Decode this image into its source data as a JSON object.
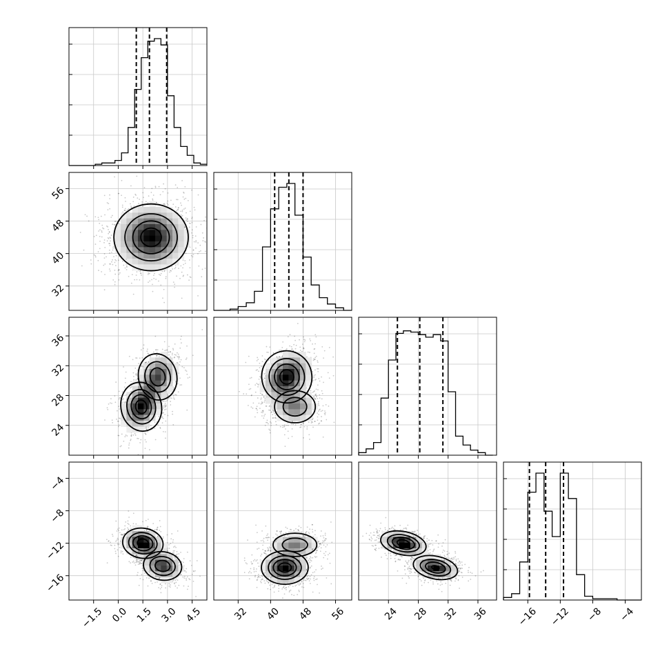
{
  "chart_data": {
    "type": "corner",
    "parameters": [
      {
        "ticks": [
          "−1.5",
          "0.0",
          "1.5",
          "3.0",
          "4.5"
        ],
        "tick_values": [
          -1.5,
          0,
          1.5,
          3,
          4.5
        ],
        "range": [
          -3.0,
          5.4
        ],
        "hist_edges": [
          -3.0,
          -2.6,
          -2.2,
          -1.8,
          -1.4,
          -1.0,
          -0.6,
          -0.2,
          0.2,
          0.6,
          1.0,
          1.4,
          1.8,
          2.2,
          2.6,
          3.0,
          3.4,
          3.8,
          4.2,
          4.6,
          5.0,
          5.4
        ],
        "hist_values": [
          0,
          0,
          0,
          0,
          0.01,
          0.02,
          0.02,
          0.04,
          0.1,
          0.3,
          0.6,
          0.85,
          0.98,
          1.0,
          0.95,
          0.55,
          0.3,
          0.15,
          0.08,
          0.02,
          0.01
        ],
        "quantiles": [
          1.1,
          1.9,
          2.95
        ]
      },
      {
        "ticks": [
          "32",
          "40",
          "48",
          "56"
        ],
        "tick_values": [
          32,
          40,
          48,
          56
        ],
        "range": [
          26,
          60
        ],
        "hist_edges": [
          26,
          28,
          30,
          32,
          34,
          36,
          38,
          40,
          42,
          44,
          46,
          48,
          50,
          52,
          54,
          56,
          58,
          60
        ],
        "hist_values": [
          0,
          0,
          0.01,
          0.03,
          0.06,
          0.15,
          0.5,
          0.8,
          0.97,
          1.0,
          0.75,
          0.42,
          0.2,
          0.1,
          0.05,
          0.02,
          0
        ],
        "quantiles": [
          41.0,
          44.5,
          48.0
        ]
      },
      {
        "ticks": [
          "24",
          "28",
          "32",
          "36"
        ],
        "tick_values": [
          24,
          28,
          32,
          36
        ],
        "range": [
          20,
          38.5
        ],
        "hist_edges": [
          20,
          21,
          22,
          23,
          24,
          25,
          26,
          27,
          28,
          29,
          30,
          31,
          32,
          33,
          34,
          35,
          36,
          37,
          38
        ],
        "hist_values": [
          0.02,
          0.05,
          0.1,
          0.45,
          0.75,
          0.96,
          0.98,
          0.97,
          0.95,
          0.93,
          0.95,
          0.9,
          0.5,
          0.15,
          0.08,
          0.04,
          0.02,
          0
        ],
        "quantiles": [
          25.2,
          28.2,
          31.3
        ]
      },
      {
        "ticks": [
          "−16",
          "−12",
          "−8",
          "−4"
        ],
        "tick_values": [
          -16,
          -12,
          -8,
          -4
        ],
        "range": [
          -19,
          -2
        ],
        "hist_edges": [
          -19,
          -18,
          -17,
          -16,
          -15,
          -14,
          -13,
          -12,
          -11,
          -10,
          -9,
          -8,
          -7,
          -6,
          -5,
          -4,
          -3,
          -2
        ],
        "hist_values": [
          0.02,
          0.05,
          0.3,
          0.85,
          1.0,
          0.7,
          0.5,
          1.0,
          0.8,
          0.2,
          0.03,
          0.01,
          0.01,
          0.01,
          0,
          0,
          0
        ],
        "quantiles": [
          -15.8,
          -13.8,
          -11.6
        ]
      }
    ],
    "pairs": [
      {
        "row": 1,
        "col": 0,
        "modes": [
          {
            "x": 2.0,
            "y": 44.0,
            "sx": 1.1,
            "sy": 4.0,
            "rho": 0.0,
            "w": 1.0
          }
        ]
      },
      {
        "row": 2,
        "col": 0,
        "modes": [
          {
            "x": 1.4,
            "y": 26.5,
            "sx": 0.6,
            "sy": 1.6,
            "rho": 0.3,
            "w": 1.0
          },
          {
            "x": 2.4,
            "y": 30.5,
            "sx": 0.6,
            "sy": 1.6,
            "rho": 0.3,
            "w": 0.8
          }
        ]
      },
      {
        "row": 2,
        "col": 1,
        "modes": [
          {
            "x": 44.0,
            "y": 30.5,
            "sx": 3.0,
            "sy": 1.7,
            "rho": 0.3,
            "w": 1.0
          },
          {
            "x": 46.0,
            "y": 26.5,
            "sx": 2.8,
            "sy": 1.2,
            "rho": 0.0,
            "w": 0.6
          }
        ]
      },
      {
        "row": 3,
        "col": 0,
        "modes": [
          {
            "x": 1.5,
            "y": -12.0,
            "sx": 0.6,
            "sy": 0.9,
            "rho": -0.2,
            "w": 1.0
          },
          {
            "x": 2.7,
            "y": -14.8,
            "sx": 0.6,
            "sy": 0.9,
            "rho": -0.2,
            "w": 0.8
          }
        ]
      },
      {
        "row": 3,
        "col": 1,
        "modes": [
          {
            "x": 43.5,
            "y": -15.0,
            "sx": 2.8,
            "sy": 1.0,
            "rho": 0.0,
            "w": 1.0
          },
          {
            "x": 46.0,
            "y": -12.2,
            "sx": 3.0,
            "sy": 0.8,
            "rho": 0.0,
            "w": 0.6
          }
        ]
      },
      {
        "row": 3,
        "col": 2,
        "modes": [
          {
            "x": 26.0,
            "y": -12.0,
            "sx": 1.5,
            "sy": 0.7,
            "rho": -0.3,
            "w": 1.0
          },
          {
            "x": 30.3,
            "y": -15.0,
            "sx": 1.5,
            "sy": 0.7,
            "rho": -0.3,
            "w": 0.9
          }
        ]
      }
    ]
  }
}
